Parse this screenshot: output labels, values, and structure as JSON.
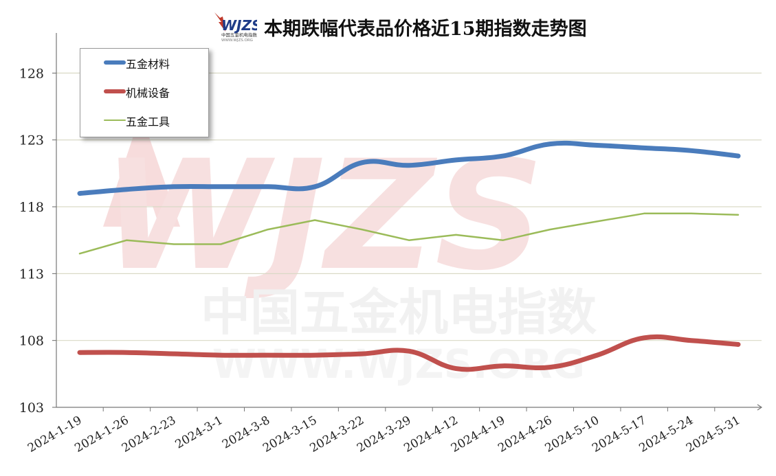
{
  "title": "本期跌幅代表品价格近15期指数走势图",
  "logo": {
    "text": "WJZS",
    "subtext": "中国五金机电指数",
    "url_text": "WWW.WJZS.ORG"
  },
  "watermark": {
    "brand": "WJZS",
    "cn": "中国五金机电指数",
    "url": "WWW.WJZS.ORG"
  },
  "colors": {
    "series1": "#4a7cbc",
    "series2": "#c0504d",
    "series3": "#9bbb59",
    "grid": "#d9d9c6",
    "watermark": "#f3d0d0"
  },
  "chart_data": {
    "type": "line",
    "x": [
      "2024-1-19",
      "2024-1-26",
      "2024-2-23",
      "2024-3-1",
      "2024-3-8",
      "2024-3-15",
      "2024-3-22",
      "2024-3-29",
      "2024-4-12",
      "2024-4-19",
      "2024-4-26",
      "2024-5-10",
      "2024-5-17",
      "2024-5-24",
      "2024-5-31"
    ],
    "series": [
      {
        "name": "五金材料",
        "values": [
          119.0,
          119.3,
          119.5,
          119.5,
          119.5,
          119.5,
          121.3,
          121.1,
          121.5,
          121.8,
          122.7,
          122.6,
          122.4,
          122.2,
          121.8
        ]
      },
      {
        "name": "机械设备",
        "values": [
          107.1,
          107.1,
          107.0,
          106.9,
          106.9,
          106.9,
          107.0,
          107.2,
          105.9,
          106.1,
          106.0,
          106.9,
          108.2,
          108.0,
          107.7
        ]
      },
      {
        "name": "五金工具",
        "values": [
          114.5,
          115.5,
          115.2,
          115.2,
          116.3,
          117.0,
          116.3,
          115.5,
          115.9,
          115.5,
          116.3,
          116.9,
          117.5,
          117.5,
          117.4
        ]
      }
    ],
    "ylim": [
      103,
      131
    ],
    "yticks": [
      103,
      108,
      113,
      118,
      123,
      128
    ],
    "ytick_labels": [
      "103",
      "108",
      "113",
      "118",
      "123",
      "128"
    ],
    "grid": true,
    "legend_position": "top-left"
  }
}
